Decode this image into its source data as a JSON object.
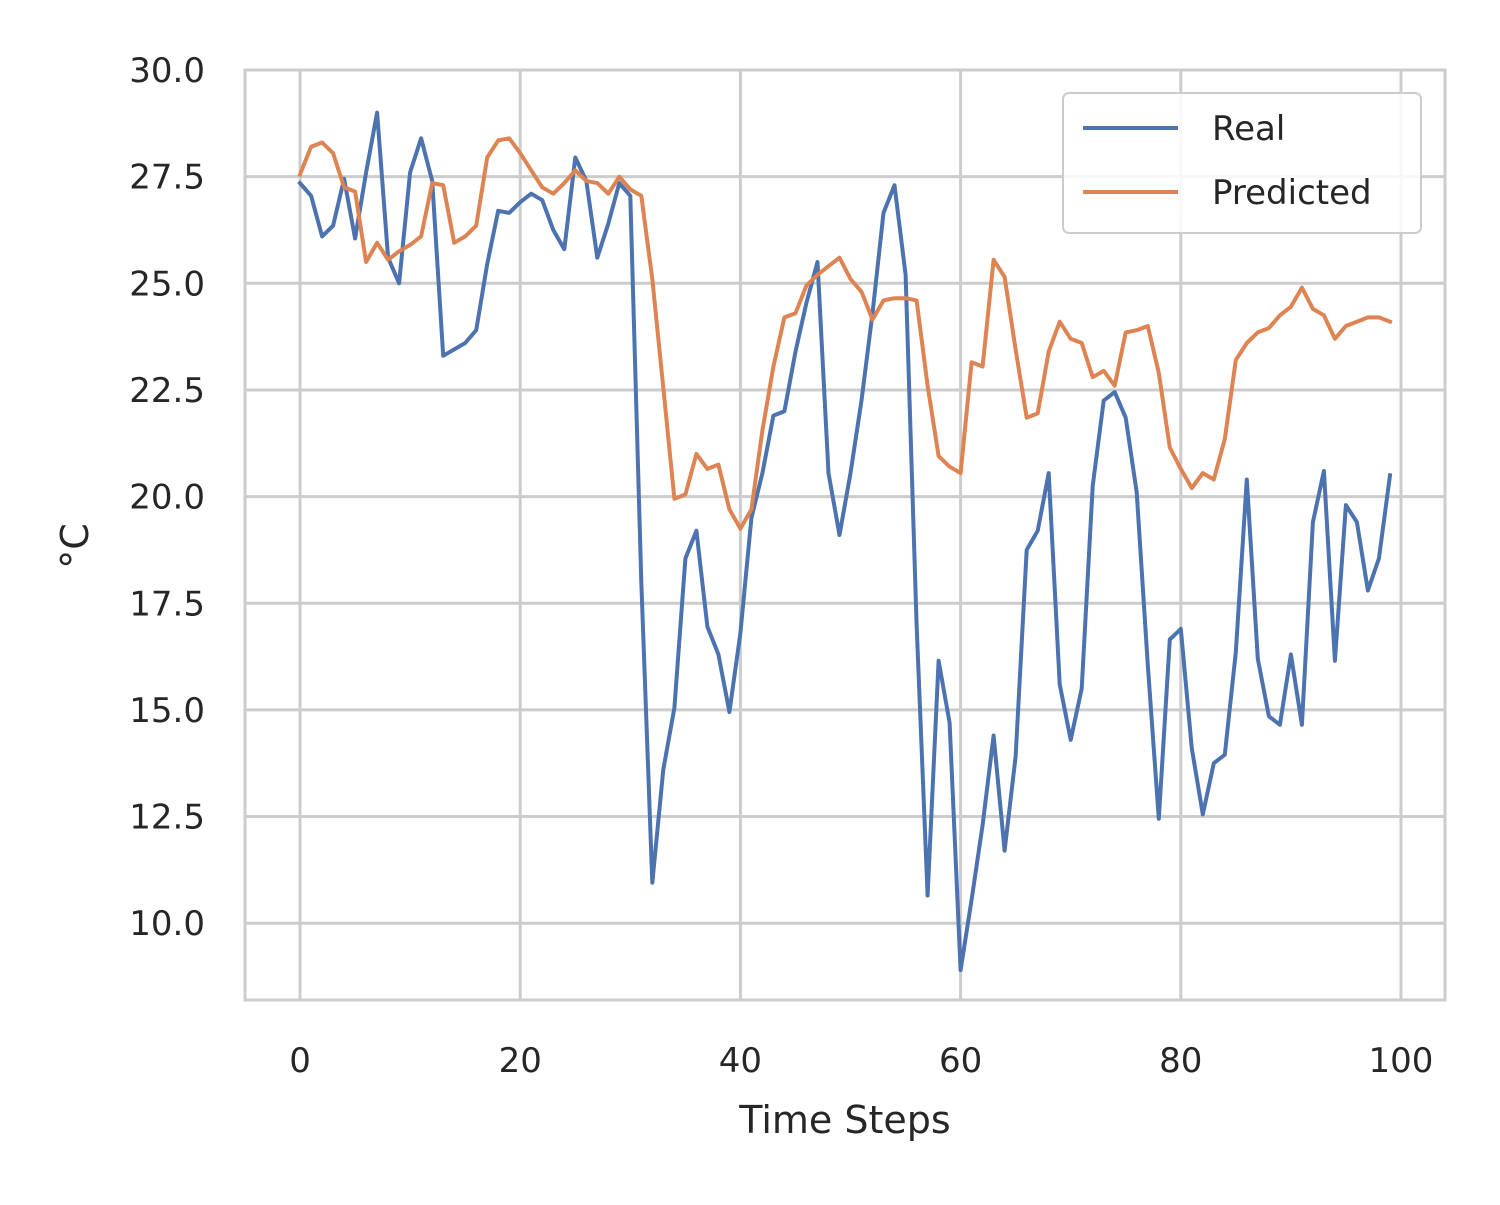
{
  "chart_data": {
    "type": "line",
    "title": "",
    "xlabel": "Time Steps",
    "ylabel": "°C",
    "xlim": [
      -5,
      104
    ],
    "ylim": [
      8.2,
      30.0
    ],
    "xticks": [
      0,
      20,
      40,
      60,
      80,
      100
    ],
    "yticks": [
      10.0,
      12.5,
      15.0,
      17.5,
      20.0,
      22.5,
      25.0,
      27.5,
      30.0
    ],
    "xtick_labels": [
      "0",
      "20",
      "40",
      "60",
      "80",
      "100"
    ],
    "ytick_labels": [
      "10.0",
      "12.5",
      "15.0",
      "17.5",
      "20.0",
      "22.5",
      "25.0",
      "27.5",
      "30.0"
    ],
    "grid": true,
    "legend_position": "top-right",
    "x": [
      0,
      1,
      2,
      3,
      4,
      5,
      6,
      7,
      8,
      9,
      10,
      11,
      12,
      13,
      14,
      15,
      16,
      17,
      18,
      19,
      20,
      21,
      22,
      23,
      24,
      25,
      26,
      27,
      28,
      29,
      30,
      31,
      32,
      33,
      34,
      35,
      36,
      37,
      38,
      39,
      40,
      41,
      42,
      43,
      44,
      45,
      46,
      47,
      48,
      49,
      50,
      51,
      52,
      53,
      54,
      55,
      56,
      57,
      58,
      59,
      60,
      61,
      62,
      63,
      64,
      65,
      66,
      67,
      68,
      69,
      70,
      71,
      72,
      73,
      74,
      75,
      76,
      77,
      78,
      79,
      80,
      81,
      82,
      83,
      84,
      85,
      86,
      87,
      88,
      89,
      90,
      91,
      92,
      93,
      94,
      95,
      96,
      97,
      98,
      99
    ],
    "series": [
      {
        "name": "Real",
        "color": "#4c72b0",
        "values": [
          27.35,
          27.05,
          26.1,
          26.35,
          27.45,
          26.05,
          27.6,
          29.0,
          25.6,
          25.0,
          27.6,
          28.4,
          27.4,
          23.3,
          23.45,
          23.6,
          23.9,
          25.45,
          26.7,
          26.65,
          26.9,
          27.1,
          26.95,
          26.25,
          25.8,
          27.95,
          27.4,
          25.6,
          26.4,
          27.35,
          27.05,
          18.0,
          10.95,
          13.6,
          15.05,
          18.55,
          19.2,
          16.95,
          16.3,
          14.95,
          16.8,
          19.5,
          20.55,
          21.9,
          22.0,
          23.4,
          24.55,
          25.5,
          20.55,
          19.1,
          20.55,
          22.25,
          24.3,
          26.65,
          27.3,
          25.2,
          17.0,
          10.65,
          16.15,
          14.7,
          8.9,
          10.55,
          12.3,
          14.4,
          11.7,
          13.9,
          18.75,
          19.2,
          20.55,
          15.6,
          14.3,
          15.5,
          20.25,
          22.25,
          22.45,
          21.85,
          20.1,
          16.05,
          12.45,
          16.65,
          16.9,
          14.1,
          12.55,
          13.75,
          13.95,
          16.35,
          20.4,
          16.2,
          14.85,
          14.65,
          16.3,
          14.65,
          19.4,
          20.6,
          16.15,
          19.8,
          19.4,
          17.8,
          18.55,
          20.5
        ]
      },
      {
        "name": "Predicted",
        "color": "#dd8452",
        "values": [
          27.55,
          28.2,
          28.3,
          28.05,
          27.25,
          27.15,
          25.5,
          25.95,
          25.55,
          25.75,
          25.9,
          26.1,
          27.35,
          27.3,
          25.95,
          26.1,
          26.35,
          27.95,
          28.35,
          28.4,
          28.05,
          27.65,
          27.25,
          27.1,
          27.35,
          27.65,
          27.4,
          27.35,
          27.1,
          27.5,
          27.2,
          27.05,
          25.1,
          22.55,
          19.95,
          20.05,
          21.0,
          20.65,
          20.75,
          19.7,
          19.25,
          19.7,
          21.55,
          23.05,
          24.2,
          24.3,
          24.95,
          25.2,
          25.4,
          25.6,
          25.1,
          24.8,
          24.15,
          24.6,
          24.65,
          24.65,
          24.6,
          22.6,
          20.95,
          20.7,
          20.55,
          23.15,
          23.05,
          25.55,
          25.15,
          23.45,
          21.85,
          21.95,
          23.4,
          24.1,
          23.7,
          23.6,
          22.8,
          22.95,
          22.6,
          23.85,
          23.9,
          24.0,
          22.9,
          21.15,
          20.65,
          20.2,
          20.55,
          20.4,
          21.35,
          23.2,
          23.6,
          23.85,
          23.95,
          24.25,
          24.45,
          24.9,
          24.4,
          24.25,
          23.7,
          24.0,
          24.1,
          24.2,
          24.2,
          24.1
        ]
      }
    ]
  }
}
